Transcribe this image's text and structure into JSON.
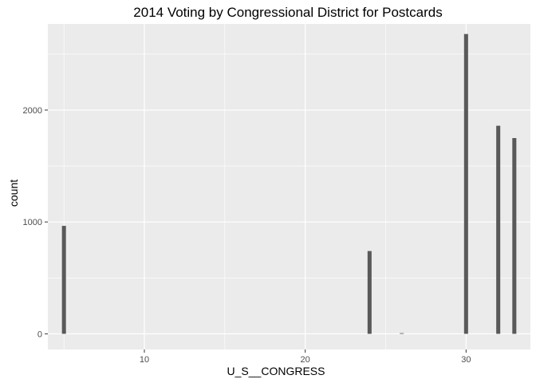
{
  "chart_data": {
    "type": "bar",
    "title": "2014 Voting by Congressional District for Postcards",
    "xlabel": "U_S__CONGRESS",
    "ylabel": "count",
    "xlim": [
      4,
      34
    ],
    "ylim": [
      -140,
      2770
    ],
    "x_ticks": [
      10,
      20,
      30
    ],
    "x_tick_labels": [
      "10",
      "20",
      "30"
    ],
    "x_minor_ticks": [
      5,
      15,
      25
    ],
    "y_ticks": [
      0,
      1000,
      2000
    ],
    "y_tick_labels": [
      "0",
      "1000",
      "2000"
    ],
    "y_minor_ticks": [
      500,
      1500,
      2500
    ],
    "bar_width": 0.25,
    "grid": true,
    "colors": {
      "panel_background": "#ebebeb",
      "grid_line": "#ffffff",
      "bar_fill": "#595959",
      "tick_mark": "#333333"
    },
    "x": [
      5,
      24,
      26,
      30,
      32,
      33
    ],
    "values": [
      965,
      740,
      5,
      2680,
      1860,
      1750
    ]
  }
}
